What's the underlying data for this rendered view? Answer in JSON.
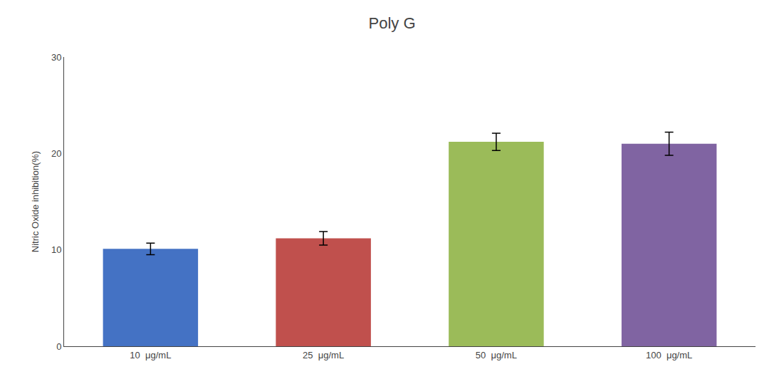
{
  "chart_data": {
    "type": "bar",
    "title": "Poly G",
    "categories": [
      "10  μg/mL",
      "25  μg/mL",
      "50  μg/mL",
      "100  μg/mL"
    ],
    "values": [
      10.1,
      11.2,
      21.2,
      21.0
    ],
    "errors": [
      0.6,
      0.7,
      0.9,
      1.2
    ],
    "colors": [
      "#4472C4",
      "#C0504D",
      "#9BBB59",
      "#8064A2"
    ],
    "ylabel": "Nitric Oxide inhibition(%)",
    "ylim": [
      0,
      30
    ],
    "yticks": [
      0,
      10,
      20,
      30
    ],
    "grid": false
  }
}
